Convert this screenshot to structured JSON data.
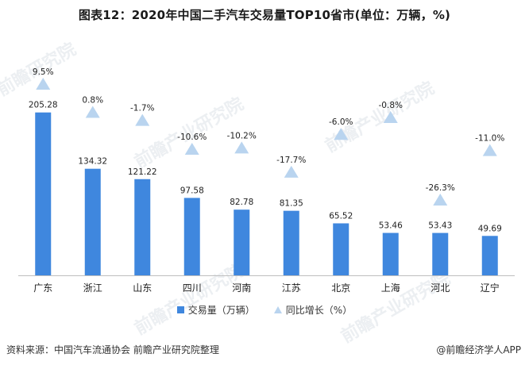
{
  "title": "图表12：2020年中国二手汽车交易量TOP10省市(单位：万辆，%)",
  "footer": {
    "source": "资料来源：中国汽车流通协会 前瞻产业研究院整理",
    "brand": "@前瞻经济学人APP"
  },
  "colors": {
    "bar": "#3f87de",
    "marker": "#b9d4ef",
    "axis": "#bfbfbf"
  },
  "chart_data": {
    "type": "bar",
    "title": "图表12：2020年中国二手汽车交易量TOP10省市(单位：万辆，%)",
    "categories": [
      "广东",
      "浙江",
      "山东",
      "四川",
      "河南",
      "江苏",
      "北京",
      "上海",
      "河北",
      "辽宁"
    ],
    "series": [
      {
        "name": "交易量（万辆）",
        "type": "bar",
        "values": [
          205.28,
          134.32,
          121.22,
          97.58,
          82.78,
          81.35,
          65.52,
          53.46,
          53.43,
          49.69
        ],
        "labels": [
          "205.28",
          "134.32",
          "121.22",
          "97.58",
          "82.78",
          "81.35",
          "65.52",
          "53.46",
          "53.43",
          "49.69"
        ]
      },
      {
        "name": "同比增长（%）",
        "type": "scatter",
        "marker": "triangle",
        "values": [
          9.5,
          0.8,
          -1.7,
          -10.6,
          -10.2,
          -17.7,
          -6.0,
          -0.8,
          -26.3,
          -11.0
        ],
        "labels": [
          "9.5%",
          "0.8%",
          "-1.7%",
          "-10.6%",
          "-10.2%",
          "-17.7%",
          "-6.0%",
          "-0.8%",
          "-26.3%",
          "-11.0%"
        ]
      }
    ],
    "legend_position": "bottom",
    "grid": false
  }
}
